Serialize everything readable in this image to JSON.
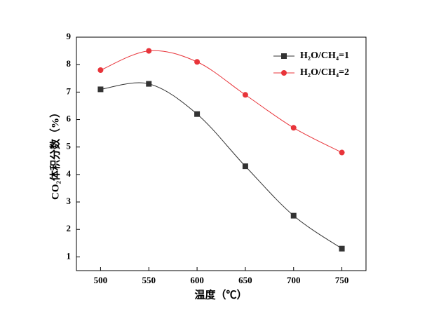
{
  "chart_data": {
    "type": "line",
    "x_label": "温度（℃）",
    "y_label": "CO₂体积分数（%）",
    "x": [
      500,
      550,
      600,
      650,
      700,
      750
    ],
    "series": [
      {
        "name": "H₂O/CH₄=1",
        "color": "#333333",
        "marker": "square",
        "values": [
          7.1,
          7.3,
          6.2,
          4.3,
          2.5,
          1.3
        ]
      },
      {
        "name": "H₂O/CH₄=2",
        "color": "#e8343a",
        "marker": "circle",
        "values": [
          7.8,
          8.5,
          8.1,
          6.9,
          5.7,
          4.8
        ]
      }
    ],
    "xlim": [
      475,
      775
    ],
    "xticks": [
      500,
      550,
      600,
      650,
      700,
      750
    ],
    "ylim": [
      0.5,
      9
    ],
    "yticks": [
      1,
      2,
      3,
      4,
      5,
      6,
      7,
      8,
      9
    ],
    "legend": "upper-right"
  }
}
